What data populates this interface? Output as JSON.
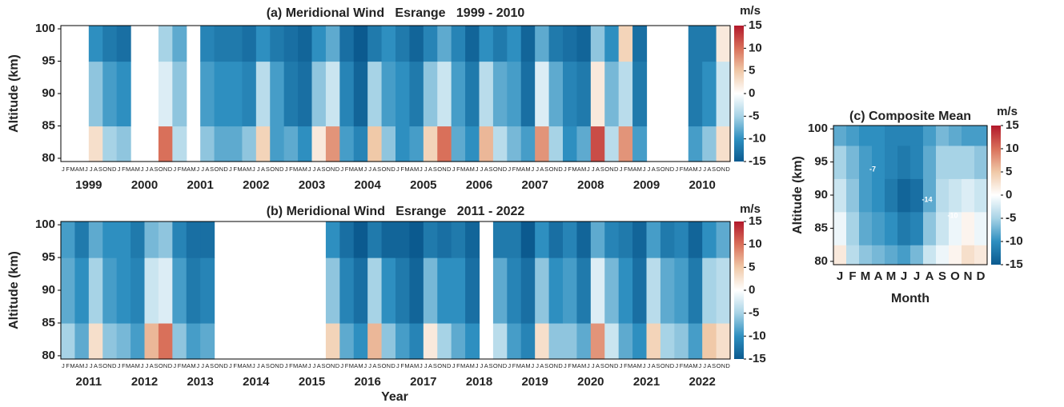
{
  "chart_data": [
    {
      "type": "heatmap",
      "title": "(a) Meridional Wind   Esrange   1999 - 2010",
      "ylabel": "Altitude (km)",
      "colorbar_label": "m/s",
      "years": [
        "1999",
        "2000",
        "2001",
        "2002",
        "2003",
        "2004",
        "2005",
        "2006",
        "2007",
        "2008",
        "2009",
        "2010"
      ],
      "month_labels": [
        "J",
        "F",
        "M",
        "A",
        "M",
        "J",
        "J",
        "A",
        "S",
        "O",
        "N",
        "D"
      ],
      "altitudes": [
        80,
        90,
        100
      ],
      "ylim": [
        79.5,
        100.5
      ],
      "yticks": [
        80,
        85,
        90,
        95,
        100
      ],
      "clim": [
        -15,
        15
      ],
      "cticks": [
        15,
        10,
        5,
        0,
        -5,
        -10,
        -15
      ],
      "colormap": [
        "#0b5a8f",
        "#2e8fc0",
        "#a7d3e6",
        "#ffffff",
        "#f0c9a8",
        "#d9705a",
        "#b2182b"
      ],
      "z": [
        [
          null,
          null,
          3,
          -5,
          -6,
          null,
          null,
          10,
          -4,
          null,
          -6,
          -8,
          -8,
          -6,
          4,
          -9,
          -8,
          -10,
          2,
          8,
          -9,
          -11,
          5,
          -6,
          -10,
          -9,
          4,
          10,
          -8,
          -10,
          6,
          -4,
          -7,
          -9,
          8,
          -5,
          -10,
          -8,
          12,
          -4,
          8,
          -9,
          null,
          null,
          null,
          -9,
          -6,
          3
        ],
        [
          null,
          null,
          -6,
          -9,
          -10,
          null,
          null,
          -2,
          -6,
          null,
          -9,
          -10,
          -10,
          -11,
          -4,
          -9,
          -12,
          -13,
          -6,
          -3,
          -11,
          -14,
          -5,
          -9,
          -10,
          -12,
          -6,
          -3,
          -9,
          -12,
          -4,
          -8,
          -9,
          -13,
          -2,
          -8,
          -11,
          -12,
          2,
          -7,
          -4,
          -12,
          null,
          null,
          null,
          -12,
          -10,
          -3
        ],
        [
          null,
          null,
          -10,
          -12,
          -13,
          null,
          null,
          -5,
          -8,
          null,
          -11,
          -12,
          -12,
          -13,
          -10,
          -12,
          -13,
          -14,
          -10,
          -8,
          -13,
          -15,
          -12,
          -10,
          -12,
          -14,
          -11,
          -8,
          -11,
          -14,
          -10,
          -12,
          -10,
          -14,
          -8,
          -12,
          -13,
          -14,
          -6,
          -10,
          4,
          -13,
          null,
          null,
          null,
          -12,
          -12,
          2
        ]
      ]
    },
    {
      "type": "heatmap",
      "title": "(b) Meridional Wind   Esrange   2011 - 2022",
      "ylabel": "Altitude (km)",
      "xlabel": "Year",
      "colorbar_label": "m/s",
      "years": [
        "2011",
        "2012",
        "2013",
        "2014",
        "2015",
        "2016",
        "2017",
        "2018",
        "2019",
        "2020",
        "2021",
        "2022"
      ],
      "month_labels": [
        "J",
        "F",
        "M",
        "A",
        "M",
        "J",
        "J",
        "A",
        "S",
        "O",
        "N",
        "D"
      ],
      "altitudes": [
        80,
        90,
        100
      ],
      "ylim": [
        79.5,
        100.5
      ],
      "yticks": [
        80,
        85,
        90,
        95,
        100
      ],
      "clim": [
        -15,
        15
      ],
      "cticks": [
        15,
        10,
        5,
        0,
        -5,
        -10,
        -15
      ],
      "colormap": [
        "#0b5a8f",
        "#2e8fc0",
        "#a7d3e6",
        "#ffffff",
        "#f0c9a8",
        "#d9705a",
        "#b2182b"
      ],
      "z": [
        [
          -5,
          -8,
          3,
          -6,
          -7,
          -9,
          6,
          10,
          -6,
          -9,
          -8,
          null,
          null,
          null,
          null,
          null,
          null,
          null,
          null,
          4,
          -8,
          -10,
          6,
          -6,
          -9,
          -11,
          2,
          -5,
          -8,
          -10,
          null,
          -4,
          -9,
          -11,
          3,
          -6,
          -6,
          -8,
          8,
          -3,
          -8,
          -10,
          4,
          -5,
          -6,
          -9,
          5,
          3
        ],
        [
          -8,
          -10,
          -5,
          -9,
          -10,
          -11,
          -3,
          -2,
          -9,
          -12,
          -11,
          null,
          null,
          null,
          null,
          null,
          null,
          null,
          null,
          -6,
          -11,
          -13,
          -5,
          -10,
          -12,
          -14,
          -7,
          -10,
          -10,
          -13,
          null,
          -8,
          -11,
          -13,
          -6,
          -10,
          -9,
          -12,
          -2,
          -7,
          -10,
          -13,
          -4,
          -8,
          -9,
          -12,
          -5,
          -4
        ],
        [
          -9,
          -12,
          -8,
          -10,
          -10,
          -12,
          -7,
          -6,
          -11,
          -13,
          -13,
          null,
          null,
          null,
          null,
          null,
          null,
          null,
          null,
          -10,
          -13,
          -15,
          -12,
          -14,
          -14,
          -15,
          -12,
          -13,
          -12,
          -14,
          null,
          -12,
          -12,
          -15,
          -10,
          -13,
          -11,
          -14,
          -8,
          -11,
          -12,
          -14,
          -9,
          -12,
          -11,
          -14,
          -10,
          -8
        ]
      ]
    },
    {
      "type": "heatmap",
      "title": "(c) Composite Mean",
      "ylabel": "Altitude (km)",
      "xlabel": "Month",
      "colorbar_label": "m/s",
      "categories": [
        "J",
        "F",
        "M",
        "A",
        "M",
        "J",
        "J",
        "A",
        "S",
        "O",
        "N",
        "D"
      ],
      "altitudes": [
        80,
        85,
        90,
        95,
        100
      ],
      "ylim": [
        79.5,
        100.5
      ],
      "yticks": [
        80,
        85,
        90,
        95,
        100
      ],
      "clim": [
        -15,
        15
      ],
      "cticks": [
        15,
        10,
        5,
        0,
        -5,
        -10,
        -15
      ],
      "colormap": [
        "#0b5a8f",
        "#2e8fc0",
        "#a7d3e6",
        "#ffffff",
        "#f0c9a8",
        "#d9705a",
        "#b2182b"
      ],
      "annotations": [
        "-14",
        "-10",
        "-7"
      ],
      "z": [
        [
          2,
          -4,
          -6,
          -7,
          -8,
          -9,
          -7,
          -3,
          -1,
          1,
          3,
          2
        ],
        [
          -1,
          -5,
          -8,
          -9,
          -10,
          -12,
          -11,
          -6,
          -3,
          -1,
          1,
          -1
        ],
        [
          -3,
          -6,
          -9,
          -10,
          -12,
          -14,
          -13,
          -8,
          -4,
          -3,
          -2,
          -3
        ],
        [
          -5,
          -7,
          -9,
          -10,
          -11,
          -12,
          -11,
          -8,
          -5,
          -5,
          -5,
          -6
        ],
        [
          -8,
          -9,
          -10,
          -10,
          -11,
          -11,
          -11,
          -9,
          -7,
          -8,
          -9,
          -9
        ]
      ]
    }
  ]
}
